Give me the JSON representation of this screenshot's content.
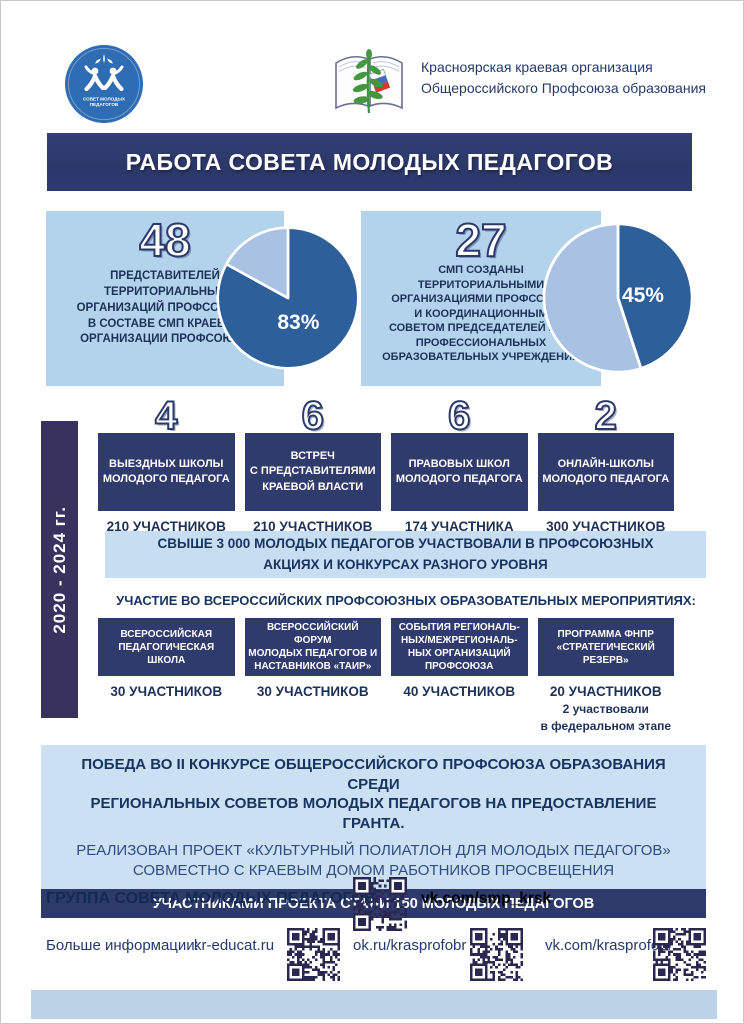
{
  "header": {
    "org_line1": "Красноярская краевая организация",
    "org_line2": "Общероссийского Профсоюза образования",
    "smp_logo_line1": "СОВЕТ МОЛОДЫХ",
    "smp_logo_line2": "ПЕДАГОГОВ"
  },
  "title": "РАБОТА СОВЕТА МОЛОДЫХ ПЕДАГОГОВ",
  "period": "2020 - 2024 гг.",
  "stats": [
    {
      "number": "48",
      "description": "ПРЕДСТАВИТЕЛЕЙ\nТЕРРИТОРИАЛЬНЫХ\nОРГАНИЗАЦИЙ ПРОФСОЮЗА -\nВ СОСТАВЕ СМП КРАЕВОЙ\nОРГАНИЗАЦИИ ПРОФСОЮЗА",
      "pie_label": "83%"
    },
    {
      "number": "27",
      "description": "СМП СОЗДАНЫ\nТЕРРИТОРИАЛЬНЫМИ\nОРГАНИЗАЦИЯМИ ПРОФСОЮЗА\nИ КООРДИНАЦИОННЫМ\nСОВЕТОМ ПРЕДСЕДАТЕЛЕЙ ППО\nПРОФЕССИОНАЛЬНЫХ\nОБРАЗОВАТЕЛЬНЫХ УЧРЕЖДЕНИЙ",
      "pie_label": "45%"
    }
  ],
  "row1": [
    {
      "number": "4",
      "title": "ВЫЕЗДНЫХ ШКОЛЫ\nМОЛОДОГО ПЕДАГОГА",
      "participants": "210 УЧАСТНИКОВ"
    },
    {
      "number": "6",
      "title": "ВСТРЕЧ\nС ПРЕДСТАВИТЕЛЯМИ\nКРАЕВОЙ ВЛАСТИ",
      "participants": "210 УЧАСТНИКОВ"
    },
    {
      "number": "6",
      "title": "ПРАВОВЫХ ШКОЛ\nМОЛОДОГО ПЕДАГОГА",
      "participants": "174 УЧАСТНИКА"
    },
    {
      "number": "2",
      "title": "ОНЛАЙН-ШКОЛЫ\nМОЛОДОГО ПЕДАГОГА",
      "participants": "300 УЧАСТНИКОВ"
    }
  ],
  "banner": "СВЫШЕ 3 000 МОЛОДЫХ ПЕДАГОГОВ УЧАСТВОВАЛИ В ПРОФСОЮЗНЫХ\nАКЦИЯХ И КОНКУРСАХ РАЗНОГО УРОВНЯ",
  "row2_heading": "УЧАСТИЕ ВО ВСЕРОССИЙСКИХ ПРОФСОЮЗНЫХ ОБРАЗОВАТЕЛЬНЫХ МЕРОПРИЯТИЯХ:",
  "row2": [
    {
      "title": "ВСЕРОССИЙСКАЯ\nПЕДАГОГИЧЕСКАЯ\nШКОЛА",
      "participants": "30 УЧАСТНИКОВ",
      "note": ""
    },
    {
      "title": "ВСЕРОССИЙСКИЙ ФОРУМ\nМОЛОДЫХ ПЕДАГОГОВ И\nНАСТАВНИКОВ «ТАИР»",
      "participants": "30 УЧАСТНИКОВ",
      "note": ""
    },
    {
      "title": "СОБЫТИЯ РЕГИОНАЛЬ-\nНЫХ/МЕЖРЕГИОНАЛЬ-\nНЫХ ОРГАНИЗАЦИЙ\nПРОФСОЮЗА",
      "participants": "40 УЧАСТНИКОВ",
      "note": ""
    },
    {
      "title": "ПРОГРАММА ФНПР\n«СТРАТЕГИЧЕСКИЙ\nРЕЗЕРВ»",
      "participants": "20 УЧАСТНИКОВ",
      "note": "2 участвовали\nв федеральном этапе"
    }
  ],
  "grant": {
    "line1": "ПОБЕДА ВО II КОНКУРСЕ ОБЩЕРОССИЙСКОГО ПРОФСОЮЗА ОБРАЗОВАНИЯ СРЕДИ\nРЕГИОНАЛЬНЫХ СОВЕТОВ МОЛОДЫХ ПЕДАГОГОВ НА ПРЕДОСТАВЛЕНИЕ ГРАНТА.",
    "line2": "РЕАЛИЗОВАН ПРОЕКТ «КУЛЬТУРНЫЙ ПОЛИАТЛОН ДЛЯ МОЛОДЫХ ПЕДАГОГОВ»\nСОВМЕСТНО С КРАЕВЫМ ДОМОМ РАБОТНИКОВ ПРОСВЕЩЕНИЯ",
    "bar": "УЧАСТНИКАМИ ПРОЕКТА СТАЛИ 150 МОЛОДЫХ ПЕДАГОГОВ"
  },
  "footer": {
    "group_label": "ГРУППА СОВЕТА МОЛОДЫХ ПЕДАГОГОВ:",
    "group_link": "vk.com/smp_krsk",
    "more_info_label": "Больше информации:",
    "link_site": "kr-educat.ru",
    "link_ok": "ok.ru/krasprofobr",
    "link_vk": "vk.com/krasprofobr"
  },
  "colors": {
    "navy": "#2e3a6d",
    "dark_purple_bar": "#39325e",
    "panel_blue": "#b3d3ec",
    "light_banner_blue": "#c7ddf2",
    "grant_box_blue": "#cbe0f3",
    "pie_dark": "#2d5f9b",
    "pie_light": "#a9c1e2",
    "text_navy": "#1d3158",
    "logo_blue": "#2e6cb4"
  },
  "chart_data": [
    {
      "type": "pie",
      "title": "48 представителей территориальных организаций профсоюза в составе СМП краевой организации профсоюза",
      "labels": [
        "83%",
        ""
      ],
      "values": [
        83,
        17
      ],
      "colors": [
        "#2d5f9b",
        "#a9c1e2"
      ],
      "legend_position": "none"
    },
    {
      "type": "pie",
      "title": "27 СМП созданы территориальными организациями профсоюза и координационным советом председателей ППО",
      "labels": [
        "45%",
        ""
      ],
      "values": [
        45,
        55
      ],
      "colors": [
        "#2d5f9b",
        "#a9c1e2"
      ],
      "legend_position": "none"
    }
  ]
}
